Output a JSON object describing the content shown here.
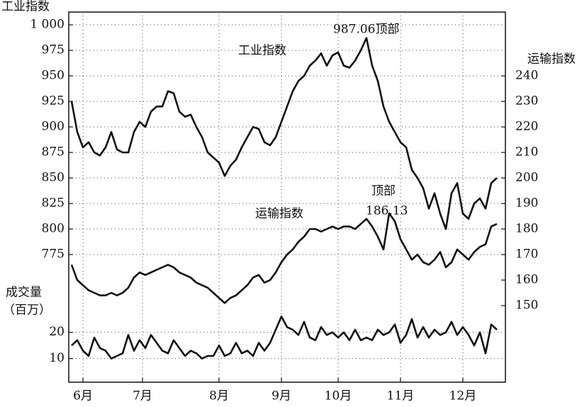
{
  "chart_data": {
    "type": "line",
    "ylabel": "工业指数",
    "y2label": "运输指数",
    "y3label": [
      "成交量",
      "（百万）"
    ],
    "annotations": [
      "987.06顶部",
      "顶部",
      "186.13"
    ],
    "x": [
      1,
      3,
      5,
      7,
      9,
      11,
      13,
      15,
      17,
      19,
      21,
      23,
      25,
      27,
      29,
      31,
      33,
      35,
      37,
      39,
      41,
      43,
      45,
      47,
      49,
      51,
      53,
      55,
      57,
      59,
      61,
      63,
      65,
      67,
      69,
      71,
      73,
      75,
      77,
      79,
      81,
      83,
      85,
      87,
      89,
      91,
      93,
      95,
      97,
      99,
      101,
      103,
      105,
      107,
      109,
      111,
      113,
      115,
      117,
      119,
      121,
      123,
      125,
      127,
      129,
      131,
      133,
      135,
      137,
      139,
      141,
      143,
      145,
      147,
      149,
      151
    ],
    "xlim": [
      0,
      154
    ],
    "xticks": [
      {
        "value": 5,
        "label": "6月"
      },
      {
        "value": 26,
        "label": "7月"
      },
      {
        "value": 53,
        "label": "8月"
      },
      {
        "value": 75,
        "label": "9月"
      },
      {
        "value": 95,
        "label": "10月"
      },
      {
        "value": 117,
        "label": "11月"
      },
      {
        "value": 139,
        "label": "12月"
      }
    ],
    "ylim": [
      650,
      1012.5
    ],
    "yticks": [
      775,
      800,
      825,
      850,
      875,
      900,
      925,
      950,
      975,
      {
        "value": 1000,
        "label": "1 000"
      }
    ],
    "y2lim": [
      120,
      265
    ],
    "y2ticks": [
      150,
      160,
      170,
      180,
      190,
      200,
      210,
      220,
      230,
      240
    ],
    "y3lim": [
      1,
      142
    ],
    "y3ticks": [
      10,
      20
    ],
    "grid": true,
    "series": [
      {
        "name": "工业指数",
        "axis": "y",
        "color": "#111111",
        "values": [
          925,
          895,
          880,
          885,
          875,
          872,
          880,
          895,
          878,
          875,
          875,
          895,
          905,
          900,
          915,
          920,
          920,
          935,
          933,
          915,
          910,
          912,
          900,
          890,
          875,
          870,
          865,
          852,
          862,
          868,
          880,
          890,
          900,
          898,
          885,
          882,
          890,
          905,
          920,
          935,
          945,
          950,
          960,
          965,
          972,
          960,
          970,
          973,
          960,
          958,
          965,
          975,
          987.06,
          960,
          945,
          920,
          905,
          895,
          885,
          880,
          858,
          850,
          840,
          820,
          835,
          815,
          800,
          835,
          845,
          815,
          810,
          825,
          830,
          820,
          845,
          850
        ]
      },
      {
        "name": "运输指数",
        "axis": "y2",
        "color": "#111111",
        "values": [
          166,
          160,
          158,
          156,
          155,
          154,
          154,
          155,
          154,
          155,
          157,
          161,
          163,
          162,
          163,
          164,
          165,
          166,
          165,
          163,
          162,
          161,
          159,
          158,
          157,
          155,
          153,
          151,
          153,
          154,
          156,
          158,
          161,
          162,
          159,
          160,
          163,
          167,
          170,
          172,
          175,
          177,
          180,
          180,
          179,
          180,
          181,
          180,
          181,
          181,
          180,
          182,
          184,
          181,
          177,
          172,
          186.13,
          183,
          176,
          172,
          168,
          170,
          167,
          166,
          168,
          171,
          165,
          167,
          172,
          170,
          168,
          171,
          173,
          174,
          181,
          182
        ]
      },
      {
        "name": "成交量",
        "axis": "y3",
        "color": "#111111",
        "values": [
          15,
          17,
          13,
          11,
          18,
          14,
          13,
          10,
          11,
          12,
          19,
          13,
          17,
          14,
          19,
          16,
          13,
          12,
          17,
          14,
          11,
          13,
          12,
          10,
          11,
          11,
          15,
          11,
          12,
          16,
          12,
          13,
          11,
          16,
          13,
          16,
          21,
          26,
          22,
          21,
          19,
          24,
          18,
          17,
          22,
          19,
          20,
          18,
          20,
          17,
          21,
          17,
          18,
          17,
          21,
          19,
          20,
          23,
          16,
          19,
          25,
          18,
          22,
          18,
          21,
          19,
          20,
          24,
          19,
          22,
          19,
          15,
          20,
          12,
          23,
          21
        ]
      }
    ]
  }
}
